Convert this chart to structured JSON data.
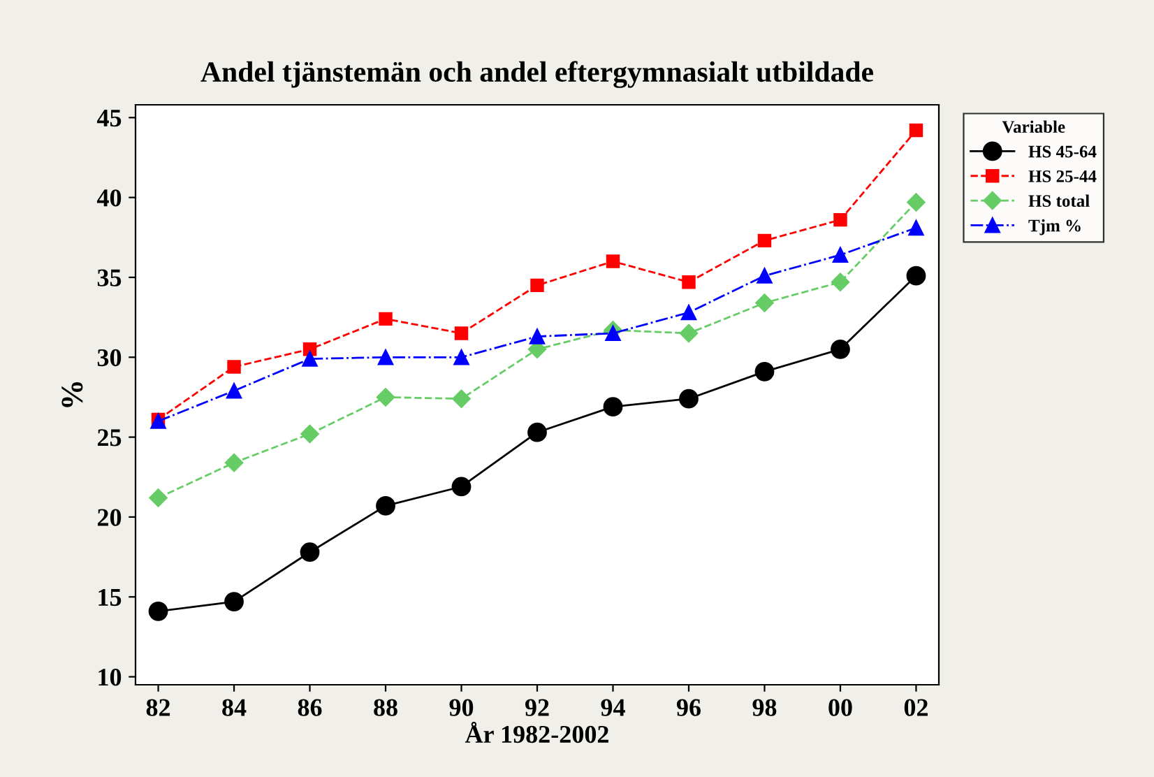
{
  "chart_data": {
    "type": "line",
    "title": "Andel tjänstemän och andel eftergymnasialt utbildade",
    "xlabel": "År 1982-2002",
    "ylabel": "%",
    "categories": [
      "82",
      "84",
      "86",
      "88",
      "90",
      "92",
      "94",
      "96",
      "98",
      "00",
      "02"
    ],
    "series": [
      {
        "name": "HS 45-64",
        "color": "#000000",
        "marker": "circle",
        "line_style": "solid",
        "values": [
          14.1,
          14.7,
          17.8,
          20.7,
          21.9,
          25.3,
          26.9,
          27.4,
          29.1,
          30.5,
          35.1
        ]
      },
      {
        "name": "HS 25-44",
        "color": "#ff0000",
        "marker": "square",
        "line_style": "dashed",
        "values": [
          26.1,
          29.4,
          30.5,
          32.4,
          31.5,
          34.5,
          36.0,
          34.7,
          37.3,
          38.6,
          44.2
        ]
      },
      {
        "name": "HS total",
        "color": "#66cc66",
        "marker": "diamond",
        "line_style": "dashed",
        "values": [
          21.2,
          23.4,
          25.2,
          27.5,
          27.4,
          30.5,
          31.7,
          31.5,
          33.4,
          34.7,
          39.7
        ]
      },
      {
        "name": "Tjm %",
        "color": "#0000ff",
        "marker": "triangle",
        "line_style": "dashdot",
        "values": [
          26.0,
          27.9,
          29.9,
          30.0,
          30.0,
          31.3,
          31.5,
          32.8,
          35.1,
          36.4,
          38.1
        ]
      }
    ],
    "legend_title": "Variable",
    "legend": "right",
    "ylim": [
      9.5,
      45.8
    ],
    "yticks": [
      10,
      15,
      20,
      25,
      30,
      35,
      40,
      45
    ],
    "grid": false
  }
}
